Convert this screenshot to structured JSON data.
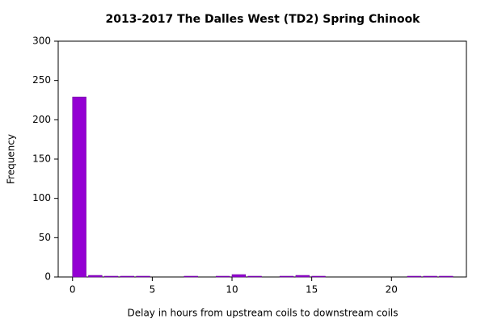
{
  "chart_data": {
    "type": "histogram",
    "title": "2013-2017 The Dalles West (TD2) Spring Chinook",
    "x_label": "Delay in hours from upstream coils to downstream coils",
    "y_label": "Frequency",
    "bins": [
      0,
      1,
      2,
      3,
      4,
      5,
      6,
      7,
      8,
      9,
      10,
      11,
      12,
      13,
      14,
      15,
      16,
      17,
      18,
      19,
      20,
      21,
      22,
      23,
      24
    ],
    "counts": [
      229,
      2,
      1,
      1,
      1,
      0,
      0,
      1,
      0,
      1,
      3,
      1,
      0,
      1,
      2,
      1,
      0,
      0,
      0,
      0,
      0,
      1,
      1,
      1
    ],
    "color": "#9400d3",
    "xlim": [
      -0.9,
      24.7
    ],
    "xticks": [
      0,
      5,
      10,
      15,
      20
    ],
    "ylim": [
      0,
      300
    ],
    "yticks": [
      0,
      50,
      100,
      150,
      200,
      250,
      300
    ],
    "grid": false
  }
}
